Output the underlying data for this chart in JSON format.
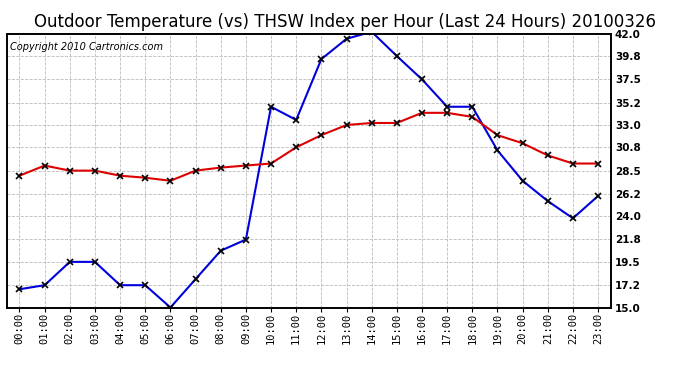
{
  "title": "Outdoor Temperature (vs) THSW Index per Hour (Last 24 Hours) 20100326",
  "copyright": "Copyright 2010 Cartronics.com",
  "hours": [
    "00:00",
    "01:00",
    "02:00",
    "03:00",
    "04:00",
    "05:00",
    "06:00",
    "07:00",
    "08:00",
    "09:00",
    "10:00",
    "11:00",
    "12:00",
    "13:00",
    "14:00",
    "15:00",
    "16:00",
    "17:00",
    "18:00",
    "19:00",
    "20:00",
    "21:00",
    "22:00",
    "23:00"
  ],
  "blue_data": [
    16.8,
    17.2,
    19.5,
    19.5,
    17.2,
    17.2,
    15.0,
    17.8,
    20.6,
    21.7,
    34.8,
    33.5,
    39.5,
    41.5,
    42.2,
    39.8,
    37.5,
    34.8,
    34.8,
    30.5,
    27.5,
    25.5,
    23.8,
    26.0
  ],
  "red_data": [
    28.0,
    29.0,
    28.5,
    28.5,
    28.0,
    27.8,
    27.5,
    28.5,
    28.8,
    29.0,
    29.2,
    30.8,
    32.0,
    33.0,
    33.2,
    33.2,
    34.2,
    34.2,
    33.8,
    32.0,
    31.2,
    30.0,
    29.2,
    29.2
  ],
  "blue_color": "#0000dd",
  "red_color": "#dd0000",
  "marker": "x",
  "marker_color": "#000000",
  "marker_size": 4,
  "marker_linewidth": 1.2,
  "ylim": [
    15.0,
    42.0
  ],
  "yticks": [
    15.0,
    17.2,
    19.5,
    21.8,
    24.0,
    26.2,
    28.5,
    30.8,
    33.0,
    35.2,
    37.5,
    39.8,
    42.0
  ],
  "ytick_labels": [
    "15.0",
    "17.2",
    "19.5",
    "21.8",
    "24.0",
    "26.2",
    "28.5",
    "30.8",
    "33.0",
    "35.2",
    "37.5",
    "39.8",
    "42.0"
  ],
  "bg_color": "#ffffff",
  "grid_color": "#bbbbbb",
  "title_fontsize": 12,
  "copyright_fontsize": 7,
  "tick_fontsize": 7.5,
  "linewidth": 1.5,
  "right_yaxis_fontweight": "bold"
}
